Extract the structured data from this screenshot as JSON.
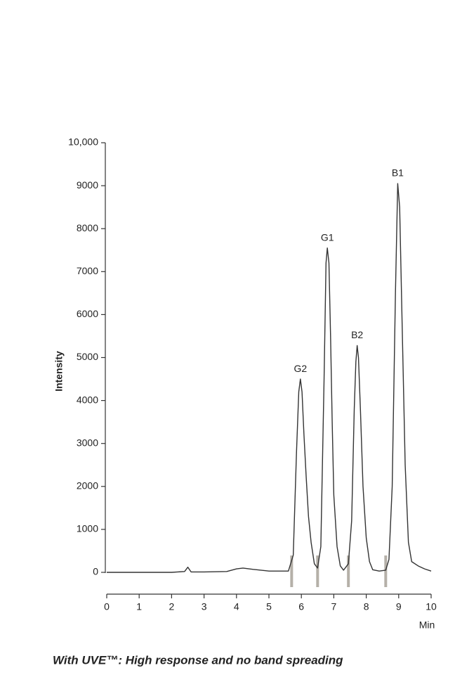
{
  "chart_data": {
    "type": "line",
    "y_label": "Intensity",
    "x_label": "Min",
    "caption": "With UVE™: High response and no band spreading",
    "x": [
      0,
      1,
      2,
      2.4,
      2.5,
      2.6,
      3,
      3.7,
      4,
      4.2,
      4.5,
      5,
      5.6,
      5.75,
      5.85,
      5.92,
      5.97,
      6.02,
      6.08,
      6.15,
      6.22,
      6.3,
      6.4,
      6.5,
      6.6,
      6.7,
      6.76,
      6.8,
      6.85,
      6.9,
      6.95,
      7.0,
      7.1,
      7.2,
      7.3,
      7.45,
      7.55,
      7.63,
      7.68,
      7.72,
      7.76,
      7.82,
      7.9,
      8.0,
      8.1,
      8.2,
      8.4,
      8.6,
      8.7,
      8.8,
      8.9,
      8.97,
      9.03,
      9.1,
      9.2,
      9.3,
      9.4,
      9.6,
      9.8,
      10
    ],
    "series": [
      {
        "name": "Intensity",
        "color": "#333333",
        "values": [
          0,
          0,
          0,
          20,
          120,
          10,
          10,
          20,
          80,
          100,
          70,
          30,
          30,
          400,
          2800,
          4200,
          4500,
          4200,
          3200,
          2200,
          1300,
          700,
          200,
          100,
          600,
          4500,
          7200,
          7550,
          7200,
          5500,
          3500,
          1800,
          600,
          150,
          50,
          200,
          1200,
          3800,
          4900,
          5280,
          5000,
          3800,
          2000,
          800,
          250,
          60,
          30,
          50,
          300,
          2000,
          6500,
          9050,
          8500,
          6000,
          2500,
          700,
          250,
          150,
          80,
          30
        ]
      }
    ],
    "peak_labels": [
      {
        "text": "G2",
        "x": 5.97,
        "y": 4500
      },
      {
        "text": "G1",
        "x": 6.8,
        "y": 7550
      },
      {
        "text": "B2",
        "x": 7.72,
        "y": 5280
      },
      {
        "text": "B1",
        "x": 8.97,
        "y": 9050
      }
    ],
    "markers": {
      "color": "#b5b0a8",
      "x": [
        5.7,
        6.5,
        7.45,
        8.6
      ]
    },
    "xlim": [
      0,
      10
    ],
    "xticks": [
      0,
      1,
      2,
      3,
      4,
      5,
      6,
      7,
      8,
      9,
      10
    ],
    "ylim": [
      0,
      10000
    ],
    "yticks": [
      0,
      1000,
      2000,
      3000,
      4000,
      5000,
      6000,
      7000,
      8000,
      9000,
      {
        "value": 10000,
        "label": "10,000"
      }
    ]
  }
}
